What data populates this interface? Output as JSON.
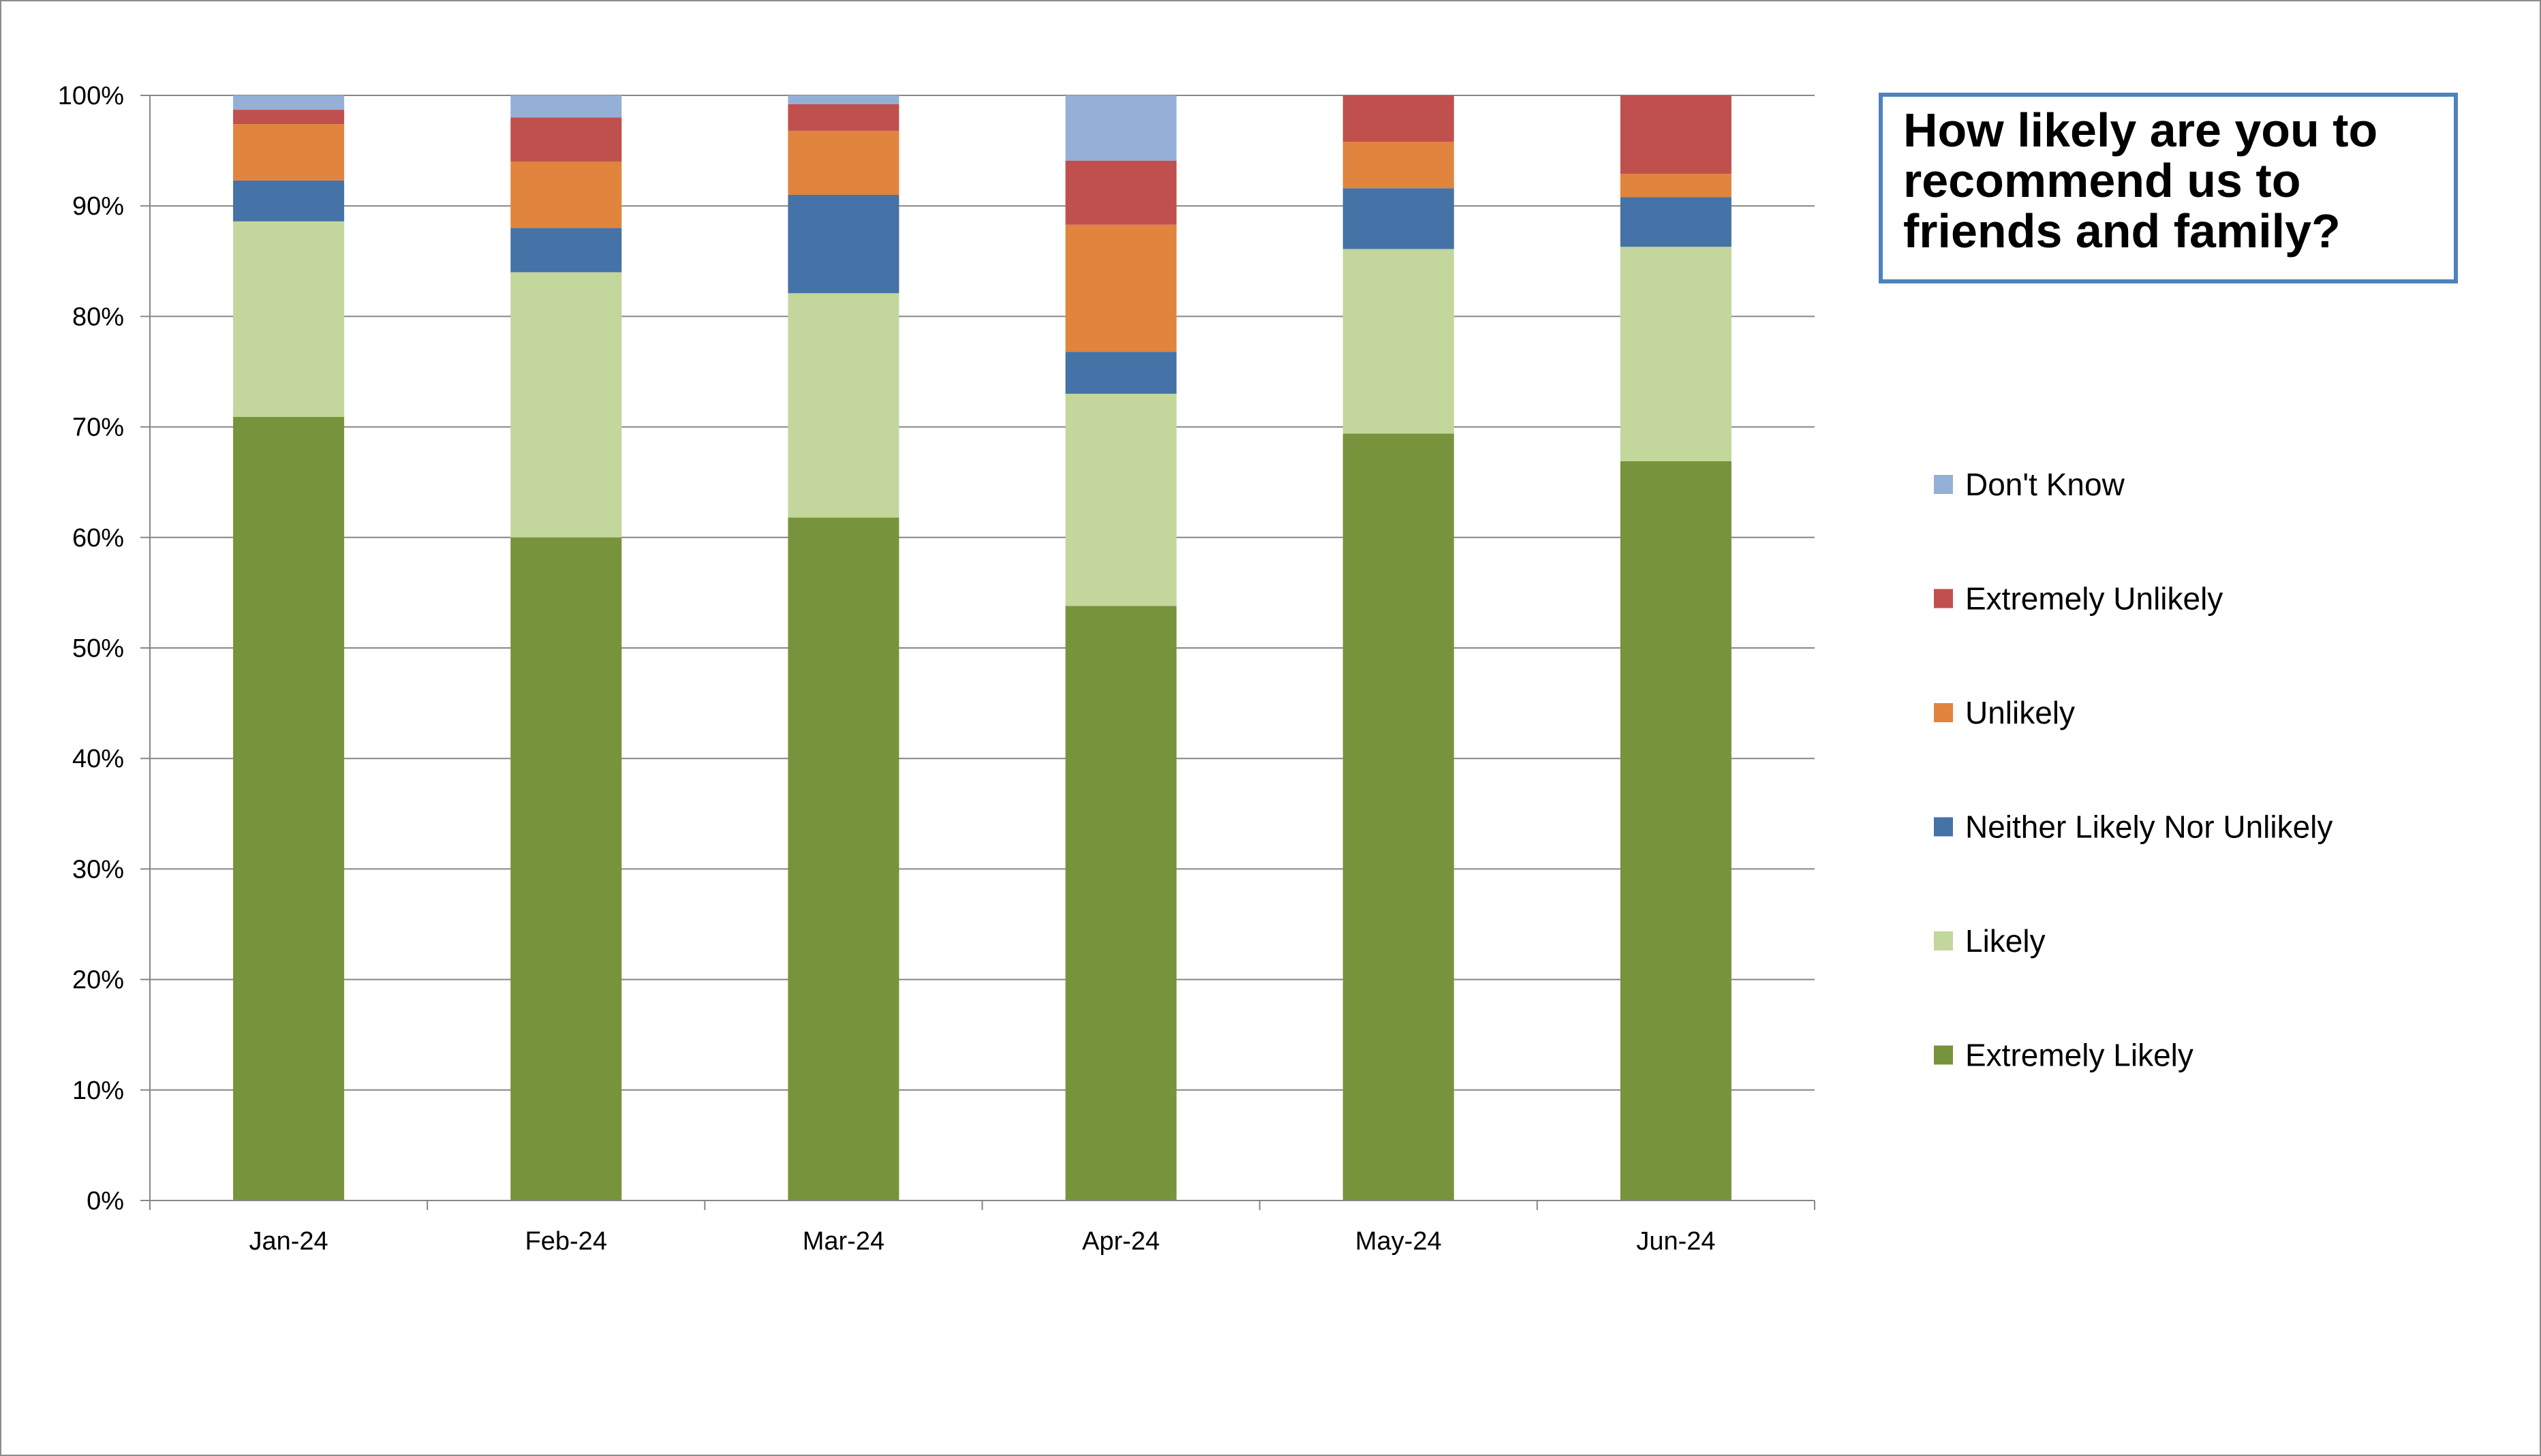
{
  "chart_data": {
    "type": "bar",
    "stacked": true,
    "title_lines": [
      "How likely are you to",
      "recommend us to",
      "friends and family?"
    ],
    "categories": [
      "Jan-24",
      "Feb-24",
      "Mar-24",
      "Apr-24",
      "May-24",
      "Jun-24"
    ],
    "y_ticks": [
      "0%",
      "10%",
      "20%",
      "30%",
      "40%",
      "50%",
      "60%",
      "70%",
      "80%",
      "90%",
      "100%"
    ],
    "ylim": [
      0,
      100
    ],
    "grid": true,
    "legend_position": "right",
    "series": [
      {
        "name": "Extremely Likely",
        "color": "#77933c",
        "values": [
          70.9,
          60.0,
          61.8,
          53.8,
          69.4,
          66.9
        ]
      },
      {
        "name": "Likely",
        "color": "#c3d69b",
        "values": [
          17.7,
          24.0,
          20.3,
          19.2,
          16.7,
          19.4
        ]
      },
      {
        "name": "Neither Likely Nor Unlikely",
        "color": "#4572a7",
        "values": [
          3.7,
          4.0,
          8.9,
          3.8,
          5.5,
          4.5
        ]
      },
      {
        "name": "Unlikely",
        "color": "#e0843e",
        "values": [
          5.1,
          6.0,
          5.8,
          11.5,
          4.2,
          2.1
        ]
      },
      {
        "name": "Extremely Unlikely",
        "color": "#c0504d",
        "values": [
          1.3,
          4.0,
          2.4,
          5.8,
          4.2,
          7.1
        ]
      },
      {
        "name": "Don't Know",
        "color": "#95b0d7",
        "values": [
          1.3,
          2.0,
          0.8,
          5.9,
          0.0,
          0.0
        ]
      }
    ]
  }
}
